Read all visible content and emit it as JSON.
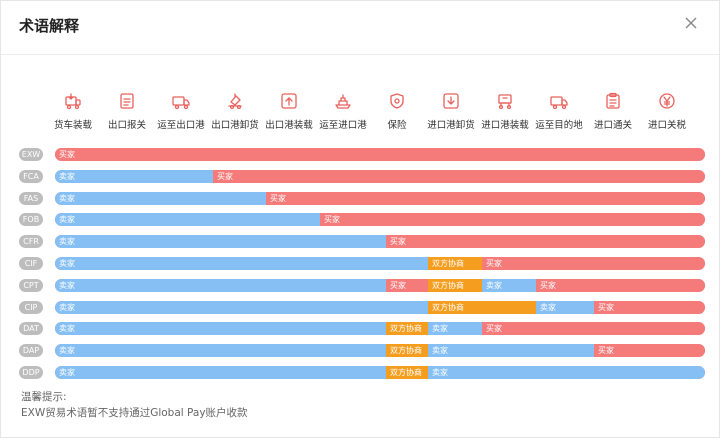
{
  "dialog": {
    "title": "术语解释"
  },
  "steps": [
    {
      "label": "货车装载",
      "icon": "truck-load-icon"
    },
    {
      "label": "出口报关",
      "icon": "document-icon"
    },
    {
      "label": "运至出口港",
      "icon": "truck-icon"
    },
    {
      "label": "出口港卸货",
      "icon": "unload-icon"
    },
    {
      "label": "出口港装载",
      "icon": "box-up-icon"
    },
    {
      "label": "运至进口港",
      "icon": "ship-icon"
    },
    {
      "label": "保险",
      "icon": "insurance-icon"
    },
    {
      "label": "进口港卸货",
      "icon": "download-box-icon"
    },
    {
      "label": "进口港装载",
      "icon": "cart-icon"
    },
    {
      "label": "运至目的地",
      "icon": "truck-icon"
    },
    {
      "label": "进口通关",
      "icon": "clipboard-icon"
    },
    {
      "label": "进口关税",
      "icon": "yen-icon"
    }
  ],
  "terms": [
    {
      "code": "EXW",
      "segments": [
        {
          "type": "buyer",
          "label": "买家"
        }
      ]
    },
    {
      "code": "FCA",
      "segments": [
        {
          "type": "seller",
          "label": "卖家"
        },
        {
          "type": "buyer",
          "label": "买家"
        }
      ]
    },
    {
      "code": "FAS",
      "segments": [
        {
          "type": "seller",
          "label": "卖家"
        },
        {
          "type": "buyer",
          "label": "买家"
        }
      ]
    },
    {
      "code": "FOB",
      "segments": [
        {
          "type": "seller",
          "label": "卖家"
        },
        {
          "type": "buyer",
          "label": "买家"
        }
      ]
    },
    {
      "code": "CFR",
      "segments": [
        {
          "type": "seller",
          "label": "卖家"
        },
        {
          "type": "buyer",
          "label": "买家"
        }
      ]
    },
    {
      "code": "CIF",
      "segments": [
        {
          "type": "seller",
          "label": "卖家"
        },
        {
          "type": "both",
          "label": "双方协商"
        },
        {
          "type": "buyer",
          "label": "买家"
        }
      ]
    },
    {
      "code": "CPT",
      "segments": [
        {
          "type": "seller",
          "label": "卖家"
        },
        {
          "type": "buyer",
          "label": "买家"
        },
        {
          "type": "both",
          "label": "双方协商"
        },
        {
          "type": "seller",
          "label": "卖家"
        },
        {
          "type": "buyer",
          "label": "买家"
        }
      ]
    },
    {
      "code": "CIP",
      "segments": [
        {
          "type": "seller",
          "label": "卖家"
        },
        {
          "type": "both",
          "label": "双方协商"
        },
        {
          "type": "seller",
          "label": "卖家"
        },
        {
          "type": "buyer",
          "label": "买家"
        }
      ]
    },
    {
      "code": "DAT",
      "segments": [
        {
          "type": "seller",
          "label": "卖家"
        },
        {
          "type": "both",
          "label": "双方协商"
        },
        {
          "type": "seller",
          "label": "卖家"
        },
        {
          "type": "buyer",
          "label": "买家"
        }
      ]
    },
    {
      "code": "DAP",
      "segments": [
        {
          "type": "seller",
          "label": "卖家"
        },
        {
          "type": "both",
          "label": "双方协商"
        },
        {
          "type": "seller",
          "label": "卖家"
        },
        {
          "type": "buyer",
          "label": "买家"
        }
      ]
    },
    {
      "code": "DDP",
      "segments": [
        {
          "type": "seller",
          "label": "卖家"
        },
        {
          "type": "both",
          "label": "双方协商"
        },
        {
          "type": "seller",
          "label": "卖家"
        }
      ]
    }
  ],
  "note": {
    "heading": "温馨提示:",
    "text": "EXW贸易术语暂不支持通过Global Pay账户收款"
  },
  "colors": {
    "seller": "#86bff4",
    "buyer": "#f57a7a",
    "both": "#f59d1f",
    "icon": "#e8605c"
  }
}
